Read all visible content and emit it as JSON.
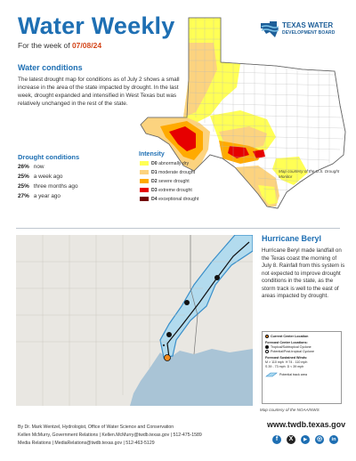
{
  "header": {
    "title": "Water Weekly",
    "week_prefix": "For the week of ",
    "week_date": "07/08/24",
    "logo_line1": "TEXAS WATER",
    "logo_line2": "DEVELOPMENT BOARD"
  },
  "conditions": {
    "heading": "Water conditions",
    "body": "The latest drought map for conditions as of July 2 shows a small increase in the area of the state impacted by drought. In the last week, drought expanded and intensified in West Texas but was relatively unchanged in the rest of the state."
  },
  "drought_conditions": {
    "heading": "Drought conditions",
    "stats": [
      {
        "value": "26%",
        "label": "now"
      },
      {
        "value": "25%",
        "label": "a week ago"
      },
      {
        "value": "25%",
        "label": "three months ago"
      },
      {
        "value": "27%",
        "label": "a year ago"
      }
    ]
  },
  "intensity": {
    "heading": "Intensity",
    "items": [
      {
        "code": "D0",
        "label": "abnormally dry",
        "color": "#ffff55"
      },
      {
        "code": "D1",
        "label": "moderate drought",
        "color": "#fcd37f"
      },
      {
        "code": "D2",
        "label": "severe drought",
        "color": "#ffaa00"
      },
      {
        "code": "D3",
        "label": "extreme drought",
        "color": "#e60000"
      },
      {
        "code": "D4",
        "label": "exceptional drought",
        "color": "#730000"
      }
    ]
  },
  "drought_map_credit": "Map courtesy of the U.S. Drought Monitor",
  "hurricane": {
    "heading": "Hurricane Beryl",
    "body": "Hurricane Beryl made landfall on the Texas coast the morning of July 8. Rainfall from this system is not expected to improve drought conditions in the state, as the storm track is well to the east of areas impacted by drought.",
    "legend": {
      "current": "Current Center Location",
      "forecast_title": "Forecast Center Locations:",
      "tropical": "Tropical/Subtropical Cyclone",
      "post": "Potential/Post-tropical Cyclone",
      "winds_title": "Forecast Sustained Winds:",
      "winds_m": "M  >  110 mph",
      "winds_h": "H  74 - 110 mph",
      "winds_s": "S  39 - 73 mph",
      "winds_d": "D  <  39 mph",
      "track": "Potential track area"
    },
    "credit": "Map courtesy of the NOAA/NWS"
  },
  "footer": {
    "line1": "By Dr. Mark Wentzel, Hydrologist, Office of Water Science and Conservation",
    "line2": "Kellen McMurry, Government Relations  |  Kellen.McMurry@twdb.texas.gov  |  512-475-1589",
    "line3": "Media Relations  |  MediaRelations@twdb.texas.gov  |  512-463-5129",
    "site": "www.twdb.texas.gov",
    "social": [
      {
        "name": "facebook",
        "glyph": "f",
        "color": "#1e6fb3"
      },
      {
        "name": "x",
        "glyph": "X",
        "color": "#222222"
      },
      {
        "name": "youtube",
        "glyph": "▶",
        "color": "#1e6fb3"
      },
      {
        "name": "instagram",
        "glyph": "◎",
        "color": "#1e6fb3"
      },
      {
        "name": "linkedin",
        "glyph": "in",
        "color": "#1e6fb3"
      }
    ]
  }
}
